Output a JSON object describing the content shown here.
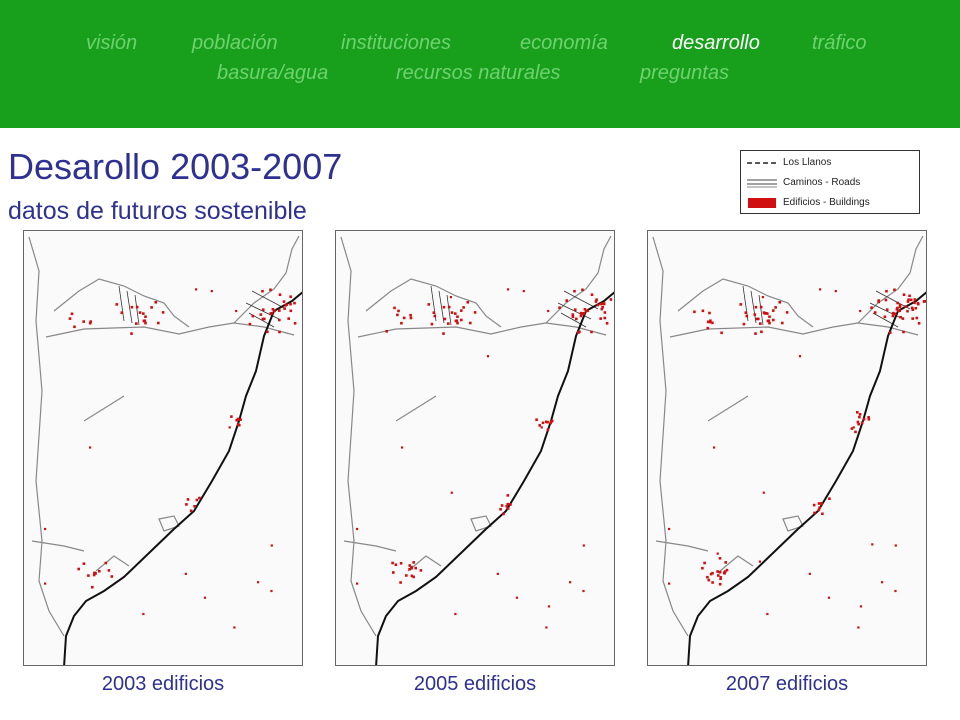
{
  "nav": {
    "row1": [
      "visión",
      "población",
      "instituciones",
      "economía",
      "desarrollo",
      "tráfico"
    ],
    "row2": [
      "basura/agua",
      "recursos naturales",
      "preguntas"
    ],
    "active": "desarrollo"
  },
  "header": {
    "title": "Desarollo 2003-2007",
    "subtitle": "datos de futuros sostenible"
  },
  "legend": {
    "items": [
      {
        "label": "Los Llanos",
        "symbol": "dashed-line"
      },
      {
        "label": "Caminos - Roads",
        "symbol": "double-line"
      },
      {
        "label": "Edificios - Buildings",
        "symbol": "red-box"
      }
    ]
  },
  "colors": {
    "nav_bg": "#18a01c",
    "nav_text": "#6fd26f",
    "nav_active": "#ffffff",
    "title": "#2e3192",
    "building": "#d01010",
    "road": "#888888",
    "main_road": "#111111"
  },
  "maps": [
    {
      "caption": "2003 edificios",
      "building_density": 1
    },
    {
      "caption": "2005 edificios",
      "building_density": 2
    },
    {
      "caption": "2007 edificios",
      "building_density": 3
    }
  ]
}
